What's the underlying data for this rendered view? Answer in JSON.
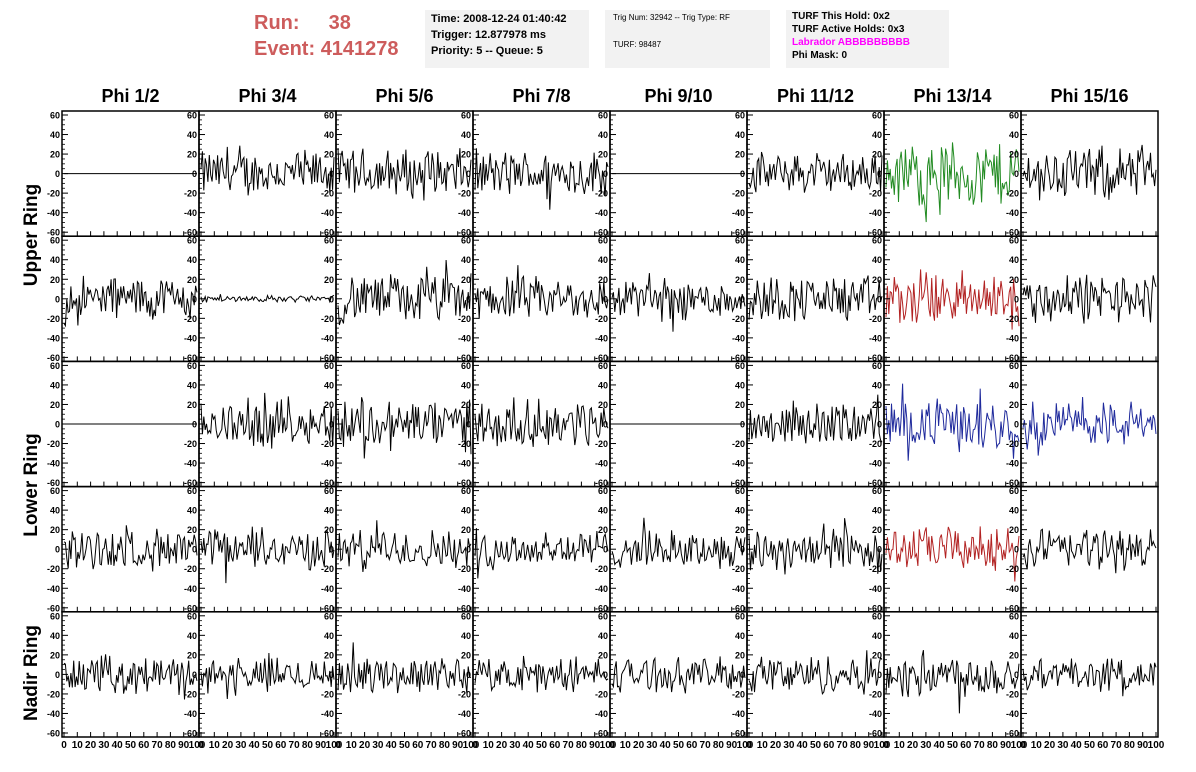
{
  "header": {
    "run_label": "Run:",
    "run_value": "38",
    "event_label": "Event:",
    "event_value": "4141278",
    "time_line": "Time: 2008-12-24 01:40:42",
    "trigger_line": "Trigger: 12.877978 ms",
    "priority_line": "Priority: 5 -- Queue: 5",
    "trig_num_line": "Trig Num: 32942 -- Trig Type: RF",
    "turf_line": "TURF: 98487",
    "turf_this_hold": "TURF This Hold: 0x2",
    "turf_active_holds": "TURF Active Holds: 0x3",
    "labrador": "Labrador ABBBBBBBBB",
    "phi_mask": "Phi Mask: 0",
    "labrador_color": "#ff00ff",
    "run_color": "#cd5c5c"
  },
  "chart_data": {
    "type": "line",
    "columns": [
      "Phi 1/2",
      "Phi 3/4",
      "Phi 5/6",
      "Phi 7/8",
      "Phi 9/10",
      "Phi 11/12",
      "Phi 13/14",
      "Phi 15/16"
    ],
    "ring_labels": [
      {
        "name": "Upper Ring",
        "rows": [
          0,
          1
        ]
      },
      {
        "name": "Lower Ring",
        "rows": [
          2,
          3
        ]
      },
      {
        "name": "Nadir Ring",
        "rows": [
          4
        ]
      }
    ],
    "xlim": [
      0,
      100
    ],
    "ylim": [
      -60,
      60
    ],
    "y_ticks": [
      -60,
      -40,
      -20,
      0,
      20,
      40,
      60
    ],
    "x_ticks": [
      0,
      10,
      20,
      30,
      40,
      50,
      60,
      70,
      80,
      90,
      100
    ],
    "samples": 96,
    "colors": {
      "normal": "#000000",
      "green": "#228b22",
      "red": "#b22222",
      "blue": "#1f2a9c"
    },
    "panels": [
      [
        {
          "amp": 0,
          "color": "normal"
        },
        {
          "amp": 28,
          "color": "normal"
        },
        {
          "amp": 30,
          "color": "normal"
        },
        {
          "amp": 28,
          "color": "normal"
        },
        {
          "amp": 0,
          "color": "normal"
        },
        {
          "amp": 24,
          "color": "normal"
        },
        {
          "amp": 40,
          "color": "green"
        },
        {
          "amp": 32,
          "color": "normal"
        }
      ],
      [
        {
          "amp": 28,
          "color": "normal"
        },
        {
          "amp": 4,
          "color": "normal"
        },
        {
          "amp": 30,
          "color": "normal"
        },
        {
          "amp": 26,
          "color": "normal"
        },
        {
          "amp": 26,
          "color": "normal"
        },
        {
          "amp": 28,
          "color": "normal"
        },
        {
          "amp": 34,
          "color": "red"
        },
        {
          "amp": 30,
          "color": "normal"
        }
      ],
      [
        {
          "amp": 0,
          "color": "normal"
        },
        {
          "amp": 28,
          "color": "normal"
        },
        {
          "amp": 32,
          "color": "normal"
        },
        {
          "amp": 28,
          "color": "normal"
        },
        {
          "amp": 0,
          "color": "normal"
        },
        {
          "amp": 26,
          "color": "normal"
        },
        {
          "amp": 30,
          "color": "blue"
        },
        {
          "amp": 28,
          "color": "blue"
        }
      ],
      [
        {
          "amp": 24,
          "color": "normal"
        },
        {
          "amp": 24,
          "color": "normal"
        },
        {
          "amp": 24,
          "color": "normal"
        },
        {
          "amp": 24,
          "color": "normal"
        },
        {
          "amp": 22,
          "color": "normal"
        },
        {
          "amp": 28,
          "color": "normal"
        },
        {
          "amp": 26,
          "color": "red"
        },
        {
          "amp": 26,
          "color": "normal"
        }
      ],
      [
        {
          "amp": 22,
          "color": "normal"
        },
        {
          "amp": 20,
          "color": "normal"
        },
        {
          "amp": 22,
          "color": "normal"
        },
        {
          "amp": 20,
          "color": "normal"
        },
        {
          "amp": 20,
          "color": "normal"
        },
        {
          "amp": 24,
          "color": "normal"
        },
        {
          "amp": 28,
          "color": "normal"
        },
        {
          "amp": 20,
          "color": "normal"
        }
      ]
    ]
  }
}
